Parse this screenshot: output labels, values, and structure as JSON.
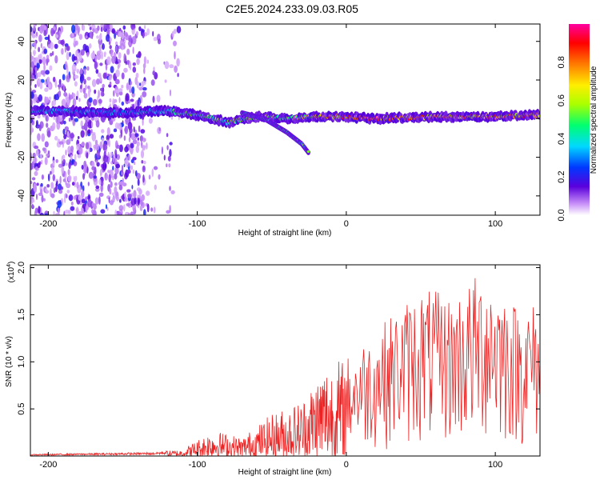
{
  "title": "C2E5.2024.233.09.03.R05",
  "chart_data": [
    {
      "type": "heatmap",
      "xlabel": "Height of straight line (km)",
      "ylabel": "Frequency (Hz)",
      "xlim": [
        -212,
        130
      ],
      "ylim": [
        -50,
        49
      ],
      "xticks": [
        "-200",
        "-100",
        "0",
        "100"
      ],
      "yticks": [
        "40",
        "20",
        "0",
        "-20",
        "-40"
      ],
      "colorbar": {
        "label": "Normalized spectral amplitude",
        "range": [
          0,
          1
        ],
        "ticks": [
          "0.0",
          "0.2",
          "0.4",
          "0.6",
          "0.8"
        ]
      },
      "main_band": [
        {
          "x": -200,
          "f": 4,
          "amp": 0.4
        },
        {
          "x": -150,
          "f": 3,
          "amp": 0.35
        },
        {
          "x": -120,
          "f": 4,
          "amp": 0.45
        },
        {
          "x": -100,
          "f": 2,
          "amp": 0.5
        },
        {
          "x": -80,
          "f": -2,
          "amp": 0.55
        },
        {
          "x": -60,
          "f": 1,
          "amp": 0.6
        },
        {
          "x": -40,
          "f": 0,
          "amp": 0.6
        },
        {
          "x": -20,
          "f": 1,
          "amp": 0.75
        },
        {
          "x": 0,
          "f": 1,
          "amp": 0.85
        },
        {
          "x": 20,
          "f": 0,
          "amp": 0.95
        },
        {
          "x": 60,
          "f": 1,
          "amp": 0.8
        },
        {
          "x": 100,
          "f": 1,
          "amp": 0.85
        },
        {
          "x": 130,
          "f": 2,
          "amp": 0.8
        }
      ],
      "descending_branch": [
        {
          "x": -70,
          "f": 3
        },
        {
          "x": -55,
          "f": 0
        },
        {
          "x": -40,
          "f": -7
        },
        {
          "x": -30,
          "f": -13
        },
        {
          "x": -25,
          "f": -18
        }
      ]
    },
    {
      "type": "line",
      "xlabel": "Height of straight line (km)",
      "ylabel": "SNR (10 * v/v)",
      "multiplier_label": "(x10",
      "multiplier_exp": "4",
      "xlim": [
        -212,
        130
      ],
      "ylim": [
        0,
        2.03
      ],
      "xticks": [
        "-200",
        "-100",
        "0",
        "100"
      ],
      "yticks": [
        "0.5",
        "1.0",
        "1.5",
        "2.0"
      ],
      "color": "#ee2222",
      "envelope": [
        {
          "x": -212,
          "y": 0.02
        },
        {
          "x": -130,
          "y": 0.04
        },
        {
          "x": -110,
          "y": 0.07
        },
        {
          "x": -90,
          "y": 0.28
        },
        {
          "x": -70,
          "y": 0.2
        },
        {
          "x": -50,
          "y": 0.45
        },
        {
          "x": -30,
          "y": 0.6
        },
        {
          "x": -15,
          "y": 1.0
        },
        {
          "x": 0,
          "y": 1.05
        },
        {
          "x": 10,
          "y": 1.2
        },
        {
          "x": 30,
          "y": 1.5
        },
        {
          "x": 50,
          "y": 1.8
        },
        {
          "x": 70,
          "y": 1.7
        },
        {
          "x": 95,
          "y": 2.03
        },
        {
          "x": 115,
          "y": 1.6
        },
        {
          "x": 130,
          "y": 1.65
        }
      ]
    }
  ]
}
